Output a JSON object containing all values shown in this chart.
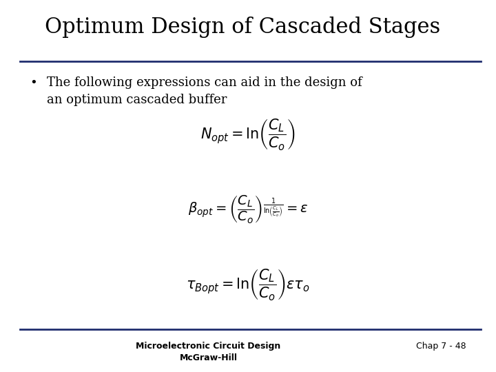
{
  "title": "Optimum Design of Cascaded Stages",
  "bullet_text": "The following expressions can aid in the design of\nan optimum cascaded buffer",
  "eq1": "$N_{opt} = \\ln\\!\\left(\\dfrac{C_L}{C_o}\\right)$",
  "eq2": "$\\beta_{opt} = \\left(\\dfrac{C_L}{C_o}\\right)^{\\frac{1}{\\ln\\!\\left(\\frac{C_L}{C_o}\\right)}} = \\varepsilon$",
  "eq3": "$\\tau_{Bopt} = \\ln\\!\\left(\\dfrac{C_L}{C_o}\\right)\\varepsilon\\tau_o$",
  "footer_left": "Microelectronic Circuit Design\nMcGraw-Hill",
  "footer_right": "Chap 7 - 48",
  "bg_color": "#ffffff",
  "title_color": "#000000",
  "text_color": "#000000",
  "line_color": "#1f2d6e",
  "title_fontsize": 22,
  "bullet_fontsize": 13,
  "eq_fontsize": 13,
  "footer_fontsize": 9
}
